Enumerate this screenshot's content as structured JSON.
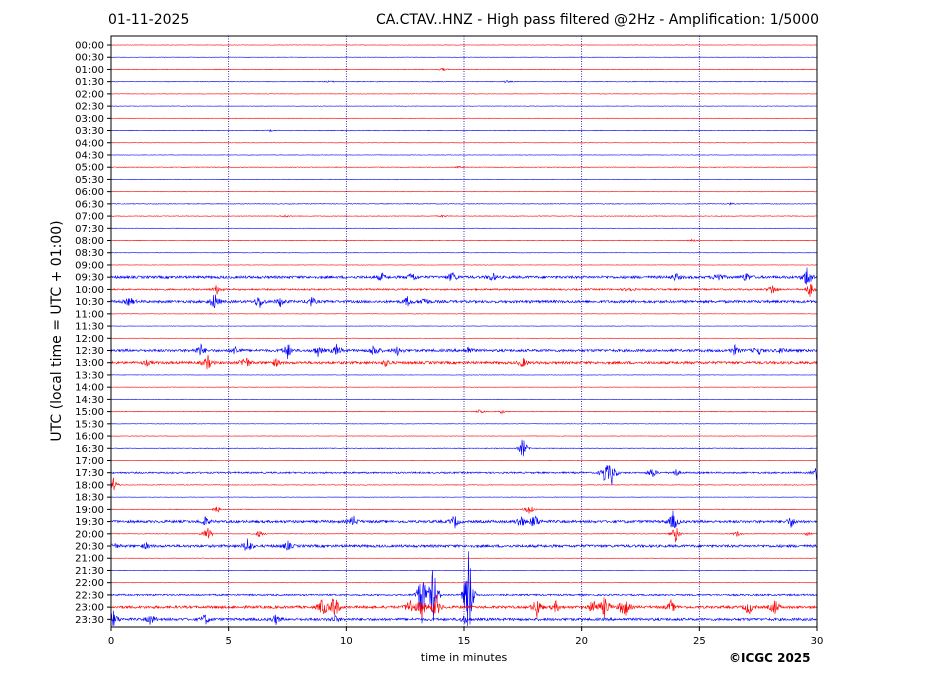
{
  "header": {
    "date": "01-11-2025",
    "title": "CA.CTAV..HNZ - High pass filtered @2Hz - Amplification: 1/5000"
  },
  "footer": {
    "copyright": "©ICGC 2025"
  },
  "colors": {
    "odd_trace": "#0000ff",
    "even_trace": "#ff0000",
    "axes": "#000000",
    "grid": "#00008b"
  },
  "chart_data": {
    "type": "line",
    "title": "CA.CTAV..HNZ - High pass filtered @2Hz - Amplification: 1/5000",
    "xlabel": "time in minutes",
    "ylabel": "UTC (local time = UTC + 01:00)",
    "xlim": [
      0,
      30
    ],
    "xticks": [
      "0",
      "5",
      "10",
      "15",
      "20",
      "25",
      "30"
    ],
    "grid": "vertical dotted at every 5 minutes",
    "row_labels": [
      "00:00",
      "00:30",
      "01:00",
      "01:30",
      "02:00",
      "02:30",
      "03:00",
      "03:30",
      "04:00",
      "04:30",
      "05:00",
      "05:30",
      "06:00",
      "06:30",
      "07:00",
      "07:30",
      "08:00",
      "08:30",
      "09:00",
      "09:30",
      "10:00",
      "10:30",
      "11:00",
      "11:30",
      "12:00",
      "12:30",
      "13:00",
      "13:30",
      "14:00",
      "14:30",
      "15:00",
      "15:30",
      "16:00",
      "16:30",
      "17:00",
      "17:30",
      "18:00",
      "18:30",
      "19:00",
      "19:30",
      "20:00",
      "20:30",
      "21:00",
      "21:30",
      "22:00",
      "22:30",
      "23:00",
      "23:30"
    ],
    "trace_colors": [
      "#ff0000",
      "#0000ff"
    ],
    "activity": [
      {
        "row": "01:00",
        "level": 1,
        "bursts": [
          [
            14.1,
            1.5
          ]
        ]
      },
      {
        "row": "01:30",
        "level": 1,
        "bursts": [
          [
            9.3,
            1.0
          ],
          [
            16.8,
            1.2
          ]
        ]
      },
      {
        "row": "03:30",
        "level": 1,
        "bursts": [
          [
            6.8,
            1.0
          ]
        ]
      },
      {
        "row": "05:00",
        "level": 1,
        "bursts": [
          [
            14.8,
            1.0
          ]
        ]
      },
      {
        "row": "06:30",
        "level": 1,
        "bursts": [
          [
            26.3,
            1.2
          ]
        ]
      },
      {
        "row": "07:00",
        "level": 1,
        "bursts": [
          [
            7.4,
            1.5
          ],
          [
            14.1,
            1.2
          ]
        ]
      },
      {
        "row": "08:00",
        "level": 1,
        "bursts": [
          [
            24.7,
            1.2
          ]
        ]
      },
      {
        "row": "09:30",
        "level": 3,
        "bursts": [
          [
            11.5,
            4
          ],
          [
            12.8,
            6
          ],
          [
            14.5,
            6
          ],
          [
            16.2,
            5
          ],
          [
            24.0,
            4
          ],
          [
            25.8,
            6
          ],
          [
            27.0,
            5
          ],
          [
            29.6,
            14
          ]
        ]
      },
      {
        "row": "10:00",
        "level": 2,
        "bursts": [
          [
            4.5,
            5
          ],
          [
            22.0,
            3
          ],
          [
            28.1,
            6
          ],
          [
            29.7,
            8
          ]
        ]
      },
      {
        "row": "10:30",
        "level": 3,
        "bursts": [
          [
            0.8,
            5
          ],
          [
            4.4,
            10
          ],
          [
            6.3,
            8
          ],
          [
            7.2,
            5
          ],
          [
            8.5,
            5
          ],
          [
            12.6,
            5
          ],
          [
            13.3,
            5
          ]
        ]
      },
      {
        "row": "12:30",
        "level": 3,
        "bursts": [
          [
            3.8,
            7
          ],
          [
            5.3,
            5
          ],
          [
            7.5,
            9
          ],
          [
            8.8,
            6
          ],
          [
            9.6,
            7
          ],
          [
            11.2,
            8
          ],
          [
            12.2,
            5
          ],
          [
            15.2,
            4
          ],
          [
            26.5,
            5
          ],
          [
            27.5,
            5
          ],
          [
            28.5,
            4
          ]
        ]
      },
      {
        "row": "13:00",
        "level": 3,
        "bursts": [
          [
            1.5,
            3
          ],
          [
            4.1,
            8
          ],
          [
            5.7,
            9
          ],
          [
            7.0,
            4
          ],
          [
            11.7,
            4
          ],
          [
            17.5,
            5
          ]
        ]
      },
      {
        "row": "15:00",
        "level": 1,
        "bursts": [
          [
            15.7,
            3
          ],
          [
            16.6,
            2
          ]
        ]
      },
      {
        "row": "16:30",
        "level": 1,
        "bursts": [
          [
            17.5,
            12
          ]
        ]
      },
      {
        "row": "17:30",
        "level": 2,
        "bursts": [
          [
            21.0,
            12
          ],
          [
            21.3,
            12
          ],
          [
            23.0,
            6
          ],
          [
            24.0,
            4
          ],
          [
            30.0,
            8
          ]
        ]
      },
      {
        "row": "18:00",
        "level": 1,
        "bursts": [
          [
            0.1,
            8
          ]
        ]
      },
      {
        "row": "19:00",
        "level": 1,
        "bursts": [
          [
            4.5,
            4
          ],
          [
            17.8,
            8
          ]
        ]
      },
      {
        "row": "19:30",
        "level": 3,
        "bursts": [
          [
            4.0,
            5
          ],
          [
            10.3,
            6
          ],
          [
            14.6,
            7
          ],
          [
            17.4,
            8
          ],
          [
            18.0,
            9
          ],
          [
            23.9,
            12
          ],
          [
            28.9,
            6
          ]
        ]
      },
      {
        "row": "20:00",
        "level": 1,
        "bursts": [
          [
            4.1,
            9
          ],
          [
            6.3,
            4
          ],
          [
            24.0,
            10
          ],
          [
            26.6,
            3
          ],
          [
            29.6,
            2
          ]
        ]
      },
      {
        "row": "20:30",
        "level": 3,
        "bursts": [
          [
            0.1,
            4
          ],
          [
            1.5,
            3
          ],
          [
            5.8,
            10
          ],
          [
            7.5,
            5
          ]
        ]
      },
      {
        "row": "22:30",
        "level": 2,
        "bursts": [
          [
            13.2,
            34
          ],
          [
            13.7,
            34
          ],
          [
            15.2,
            60
          ]
        ]
      },
      {
        "row": "23:00",
        "level": 3,
        "bursts": [
          [
            9.0,
            12
          ],
          [
            9.5,
            16
          ],
          [
            12.7,
            10
          ],
          [
            13.2,
            12
          ],
          [
            13.8,
            14
          ],
          [
            18.1,
            12
          ],
          [
            18.9,
            6
          ],
          [
            20.5,
            10
          ],
          [
            21.0,
            14
          ],
          [
            21.8,
            16
          ],
          [
            23.8,
            7
          ],
          [
            27.1,
            9
          ],
          [
            28.2,
            9
          ]
        ]
      },
      {
        "row": "23:30",
        "level": 3,
        "bursts": [
          [
            0.1,
            10
          ],
          [
            1.7,
            6
          ],
          [
            4.0,
            6
          ],
          [
            7.0,
            5
          ],
          [
            9.5,
            4
          ],
          [
            15.0,
            4
          ]
        ]
      }
    ]
  }
}
